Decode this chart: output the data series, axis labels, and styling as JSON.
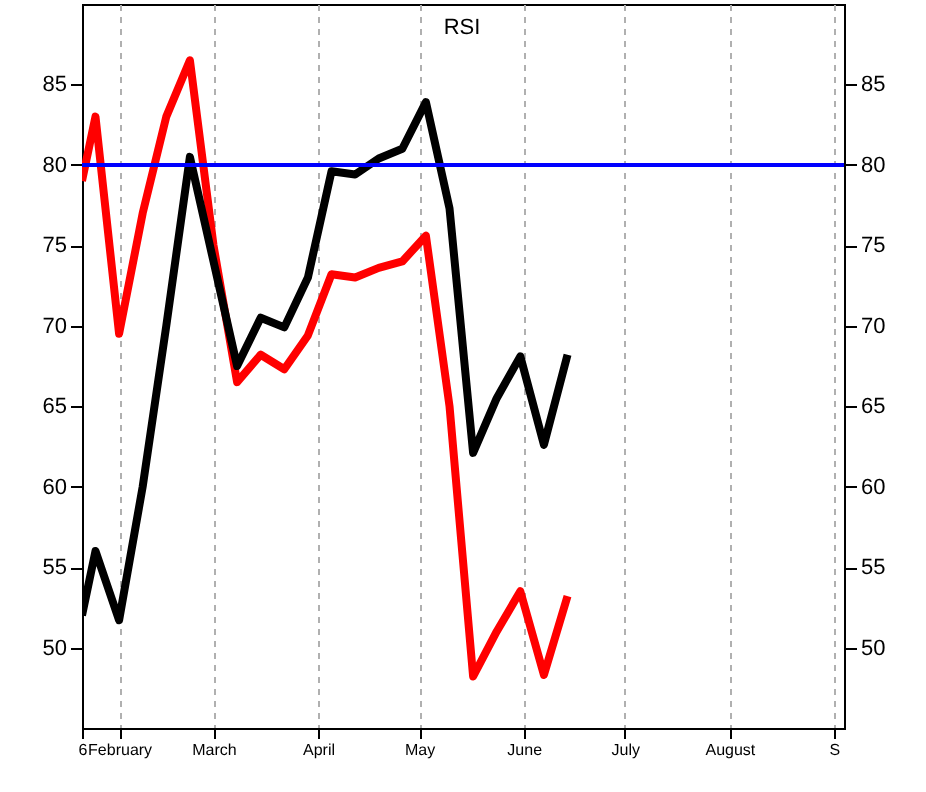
{
  "chart_data": {
    "type": "line",
    "title": "RSI",
    "x": [
      "--01-21",
      "--01-25",
      "--02-01",
      "--02-08",
      "--02-15",
      "--02-22",
      "--03-01",
      "--03-08",
      "--03-15",
      "--03-22",
      "--03-29",
      "--04-05",
      "--04-12",
      "--04-19",
      "--04-26",
      "--05-03",
      "--05-10",
      "--05-17",
      "--05-24",
      "--05-31",
      "--06-07",
      "--06-14"
    ],
    "series": [
      {
        "color": "#ff0000",
        "values": [
          79,
          83,
          69.5,
          77,
          83,
          86.5,
          75,
          66.5,
          68.2,
          67.3,
          69.4,
          73.2,
          73,
          73.6,
          74,
          75.6,
          65,
          48.2,
          51,
          53.5,
          48.3,
          53.2
        ]
      },
      {
        "color": "#000000",
        "values": [
          52,
          56,
          51.7,
          60,
          70,
          80.5,
          74,
          67.5,
          70.5,
          69.9,
          73,
          79.6,
          79.4,
          80.4,
          81,
          83.9,
          77.3,
          62.1,
          65.5,
          68.1,
          62.6,
          68.2
        ]
      }
    ],
    "xlim": [
      "--01-21",
      "--09-04"
    ],
    "xticks": [
      {
        "value": "--01-21",
        "label": "6"
      },
      {
        "value": "--02-01",
        "label": "February"
      },
      {
        "value": "--03-01",
        "label": "March"
      },
      {
        "value": "--04-01",
        "label": "April"
      },
      {
        "value": "--05-01",
        "label": "May"
      },
      {
        "value": "--06-01",
        "label": "June"
      },
      {
        "value": "--07-01",
        "label": "July"
      },
      {
        "value": "--08-01",
        "label": "August"
      },
      {
        "value": "--09-01",
        "label": "S"
      }
    ],
    "ylim": [
      45,
      90
    ],
    "yticks": [
      50,
      55,
      60,
      65,
      70,
      75,
      80,
      85
    ],
    "y2lim": [
      45,
      90
    ],
    "y2ticks": [
      50,
      55,
      60,
      65,
      70,
      75,
      80,
      85
    ],
    "ref_lines": [
      {
        "axis": "y",
        "value": 80,
        "color": "#0000ff"
      }
    ],
    "grid": "x"
  }
}
